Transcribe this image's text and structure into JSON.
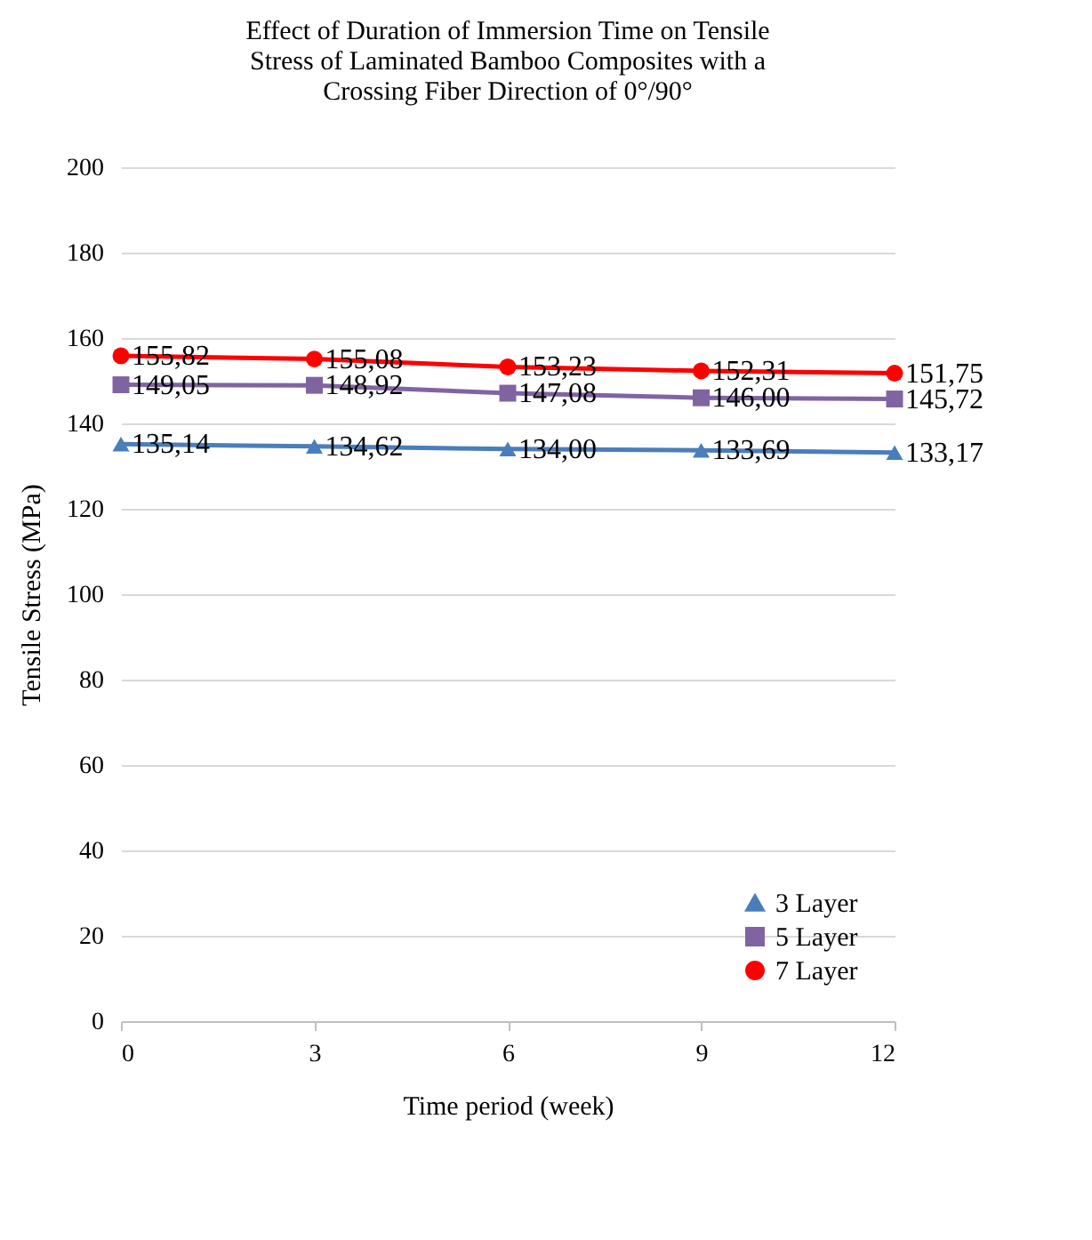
{
  "chart_data": {
    "type": "line",
    "title": [
      "Effect of Duration of Immersion Time on Tensile",
      "Stress of Laminated Bamboo Composites with a",
      "Crossing Fiber Direction of 0°/90°"
    ],
    "xlabel": "Time period (week)",
    "ylabel": "Tensile Stress (MPa)",
    "x": [
      0,
      3,
      6,
      9,
      12
    ],
    "xlim": [
      0,
      12
    ],
    "xticks": [
      0,
      3,
      6,
      9,
      12
    ],
    "ylim": [
      0,
      200
    ],
    "yticks": [
      0,
      20,
      40,
      60,
      80,
      100,
      120,
      140,
      160,
      180,
      200
    ],
    "grid": "y",
    "legend": "bottom right",
    "series": [
      {
        "name": "3 Layer",
        "color": "#4a7ebb",
        "marker": "triangle",
        "values": [
          135.14,
          134.62,
          134.0,
          133.69,
          133.17
        ],
        "value_labels": [
          "135,14",
          "134,62",
          "134,00",
          "133,69",
          "133,17"
        ]
      },
      {
        "name": "5 Layer",
        "color": "#8064a2",
        "marker": "square",
        "values": [
          149.05,
          148.92,
          147.08,
          146.0,
          145.72
        ],
        "value_labels": [
          "149,05",
          "148,92",
          "147,08",
          "146,00",
          "145,72"
        ]
      },
      {
        "name": "7 Layer",
        "color": "#ff0000",
        "marker": "circle",
        "values": [
          155.82,
          155.08,
          153.23,
          152.31,
          151.75
        ],
        "value_labels": [
          "155,82",
          "155,08",
          "153,23",
          "152,31",
          "151,75"
        ]
      }
    ]
  }
}
